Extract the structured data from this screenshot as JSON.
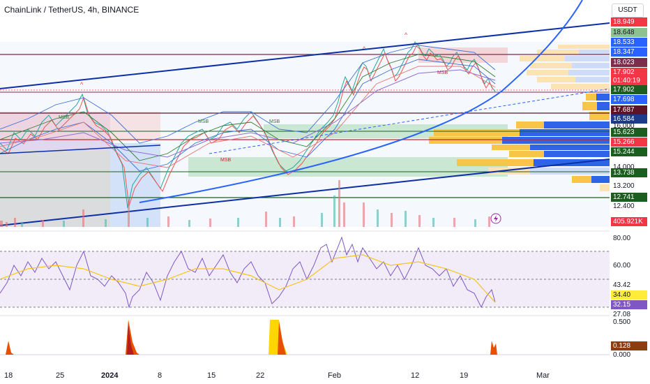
{
  "header": {
    "symbol_title": "ChainLink / TetherUS, 4h, BINANCE",
    "currency": "USDT"
  },
  "price_axis": {
    "labels": [
      {
        "text": "18.949",
        "bg": "#f23645",
        "fg": "#ffffff"
      },
      {
        "text": "18.648",
        "bg": "#8bc28f",
        "fg": "#131722"
      },
      {
        "text": "18.533",
        "bg": "#2962ff",
        "fg": "#ffffff"
      },
      {
        "text": "18.347",
        "bg": "#2962ff",
        "fg": "#ffffff"
      },
      {
        "text": "18.023",
        "bg": "#7b2d4a",
        "fg": "#ffffff"
      },
      {
        "text": "17.902",
        "bg": "#f23645",
        "fg": "#ffffff"
      },
      {
        "text": "01:40:19",
        "bg": "#f23645",
        "fg": "#ffffff"
      },
      {
        "text": "17.902",
        "bg": "#1b5e20",
        "fg": "#ffffff"
      },
      {
        "text": "17.698",
        "bg": "#2962ff",
        "fg": "#ffffff"
      },
      {
        "text": "17.687",
        "bg": "#5d1428",
        "fg": "#ffffff"
      },
      {
        "text": "16.584",
        "bg": "#1e3a8a",
        "fg": "#ffffff"
      },
      {
        "text": "16.000",
        "bg": "",
        "fg": "#131722"
      },
      {
        "text": "15.623",
        "bg": "#1b5e20",
        "fg": "#ffffff"
      },
      {
        "text": "15.266",
        "bg": "#f23645",
        "fg": "#ffffff"
      },
      {
        "text": "15.244",
        "bg": "#1b5e20",
        "fg": "#ffffff"
      },
      {
        "text": "14.000",
        "bg": "",
        "fg": "#131722"
      },
      {
        "text": "13.738",
        "bg": "#1b5e20",
        "fg": "#ffffff"
      },
      {
        "text": "13.200",
        "bg": "",
        "fg": "#131722"
      },
      {
        "text": "12.741",
        "bg": "#1b5e20",
        "fg": "#ffffff"
      },
      {
        "text": "12.400",
        "bg": "",
        "fg": "#131722"
      },
      {
        "text": "405.921K",
        "bg": "#f23645",
        "fg": "#ffffff"
      }
    ]
  },
  "rsi_axis": {
    "labels": [
      {
        "text": "80.00",
        "bg": "",
        "fg": "#131722"
      },
      {
        "text": "60.00",
        "bg": "",
        "fg": "#131722"
      },
      {
        "text": "43.42",
        "bg": "",
        "fg": "#131722"
      },
      {
        "text": "34.40",
        "bg": "#ffeb3b",
        "fg": "#131722"
      },
      {
        "text": "32.15",
        "bg": "#7e57c2",
        "fg": "#ffffff"
      },
      {
        "text": "27.08",
        "bg": "",
        "fg": "#131722"
      }
    ]
  },
  "osc_axis": {
    "labels": [
      {
        "text": "0.500",
        "bg": "",
        "fg": "#131722"
      },
      {
        "text": "0.128",
        "bg": "#8d3d12",
        "fg": "#ffffff"
      },
      {
        "text": "0.000",
        "bg": "",
        "fg": "#131722"
      }
    ]
  },
  "time_axis": [
    "18",
    "25",
    "2024",
    "8",
    "15",
    "22",
    "Feb",
    "12",
    "19",
    "Mar"
  ],
  "marks": {
    "msb": "MSB"
  },
  "colors": {
    "up": "#26a69a",
    "down": "#ef5350",
    "trend": "#0d2fa6",
    "curve": "#2962ff",
    "rsi": "#7e57c2",
    "rsi_ma": "#f5c518"
  }
}
